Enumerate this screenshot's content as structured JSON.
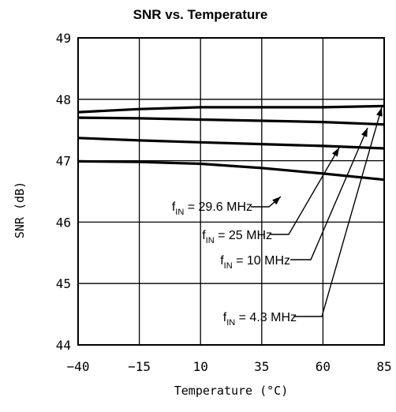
{
  "chart_data": {
    "type": "line",
    "title": "SNR vs. Temperature",
    "xlabel": "Temperature (°C)",
    "ylabel": "SNR (dB)",
    "xlim": [
      -40,
      85
    ],
    "ylim": [
      44,
      49
    ],
    "x_ticks": [
      "-40",
      "-15",
      "10",
      "35",
      "60",
      "85"
    ],
    "y_ticks": [
      "44",
      "45",
      "46",
      "47",
      "48",
      "49"
    ],
    "grid": true,
    "x": [
      -40,
      -15,
      10,
      35,
      60,
      85
    ],
    "series": [
      {
        "name": "fIN = 4.3 MHz",
        "label_prefix": "f",
        "label_sub": "IN",
        "label_rest": " = 4.3 MHz",
        "values": [
          47.79,
          47.84,
          47.87,
          47.87,
          47.87,
          47.89
        ]
      },
      {
        "name": "fIN = 10 MHz",
        "label_prefix": "f",
        "label_sub": "IN",
        "label_rest": " = 10 MHz",
        "values": [
          47.7,
          47.69,
          47.67,
          47.65,
          47.63,
          47.59
        ]
      },
      {
        "name": "fIN = 25 MHz",
        "label_prefix": "f",
        "label_sub": "IN",
        "label_rest": " = 25 MHz",
        "values": [
          47.37,
          47.33,
          47.3,
          47.27,
          47.24,
          47.2
        ]
      },
      {
        "name": "fIN = 29.6 MHz",
        "label_prefix": "f",
        "label_sub": "IN",
        "label_rest": " = 29.6 MHz",
        "values": [
          46.99,
          46.98,
          46.95,
          46.88,
          46.79,
          46.69
        ]
      }
    ]
  }
}
